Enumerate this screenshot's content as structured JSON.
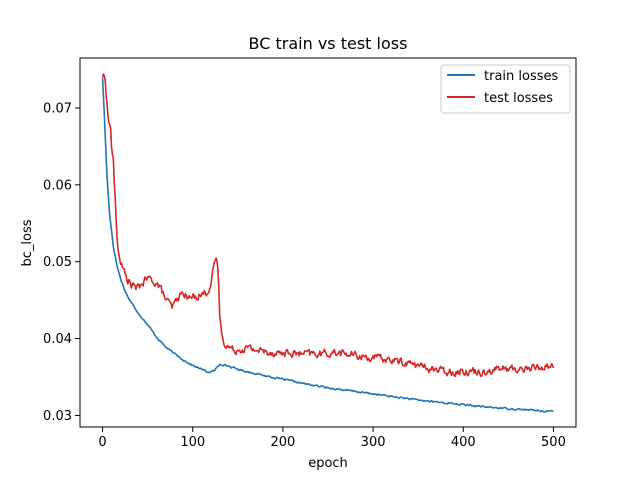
{
  "chart_data": {
    "type": "line",
    "title": "BC train vs test loss",
    "xlabel": "epoch",
    "ylabel": "bc_loss",
    "xlim": [
      -25,
      525
    ],
    "ylim": [
      0.0285,
      0.0765
    ],
    "xticks": [
      0,
      100,
      200,
      300,
      400,
      500
    ],
    "yticks": [
      0.03,
      0.04,
      0.05,
      0.06,
      0.07
    ],
    "xtick_labels": [
      "0",
      "100",
      "200",
      "300",
      "400",
      "500"
    ],
    "ytick_labels": [
      "0.03",
      "0.04",
      "0.05",
      "0.06",
      "0.07"
    ],
    "grid": false,
    "legend_position": "top-right",
    "series": [
      {
        "name": "train losses",
        "color": "#1f77b4",
        "anchors": [
          [
            0,
            0.074
          ],
          [
            2,
            0.069
          ],
          [
            5,
            0.061
          ],
          [
            8,
            0.056
          ],
          [
            12,
            0.052
          ],
          [
            16,
            0.0495
          ],
          [
            20,
            0.0478
          ],
          [
            25,
            0.0462
          ],
          [
            30,
            0.045
          ],
          [
            40,
            0.0433
          ],
          [
            50,
            0.0418
          ],
          [
            60,
            0.0402
          ],
          [
            70,
            0.0389
          ],
          [
            80,
            0.038
          ],
          [
            90,
            0.0372
          ],
          [
            100,
            0.0365
          ],
          [
            110,
            0.036
          ],
          [
            118,
            0.0356
          ],
          [
            124,
            0.0358
          ],
          [
            130,
            0.0367
          ],
          [
            135,
            0.0366
          ],
          [
            150,
            0.036
          ],
          [
            175,
            0.0353
          ],
          [
            200,
            0.0347
          ],
          [
            225,
            0.0341
          ],
          [
            250,
            0.0336
          ],
          [
            275,
            0.0332
          ],
          [
            300,
            0.0328
          ],
          [
            325,
            0.0324
          ],
          [
            350,
            0.032
          ],
          [
            375,
            0.0317
          ],
          [
            400,
            0.0314
          ],
          [
            425,
            0.0311
          ],
          [
            450,
            0.0309
          ],
          [
            475,
            0.0307
          ],
          [
            500,
            0.0305
          ]
        ],
        "noise": 0.00018
      },
      {
        "name": "test losses",
        "color": "#d62728",
        "anchors": [
          [
            0,
            0.0742
          ],
          [
            3,
            0.0738
          ],
          [
            5,
            0.0705
          ],
          [
            7,
            0.068
          ],
          [
            9,
            0.0675
          ],
          [
            10,
            0.065
          ],
          [
            12,
            0.063
          ],
          [
            14,
            0.058
          ],
          [
            16,
            0.053
          ],
          [
            18,
            0.051
          ],
          [
            22,
            0.0492
          ],
          [
            27,
            0.0478
          ],
          [
            32,
            0.047
          ],
          [
            38,
            0.0465
          ],
          [
            44,
            0.0472
          ],
          [
            50,
            0.0478
          ],
          [
            57,
            0.0475
          ],
          [
            63,
            0.0468
          ],
          [
            70,
            0.0452
          ],
          [
            77,
            0.044
          ],
          [
            84,
            0.0453
          ],
          [
            90,
            0.046
          ],
          [
            95,
            0.0452
          ],
          [
            103,
            0.0455
          ],
          [
            110,
            0.0458
          ],
          [
            115,
            0.046
          ],
          [
            120,
            0.047
          ],
          [
            123,
            0.0488
          ],
          [
            126,
            0.0505
          ],
          [
            128,
            0.049
          ],
          [
            130,
            0.043
          ],
          [
            133,
            0.04
          ],
          [
            137,
            0.0392
          ],
          [
            145,
            0.0385
          ],
          [
            160,
            0.0388
          ],
          [
            180,
            0.0383
          ],
          [
            200,
            0.0381
          ],
          [
            220,
            0.038
          ],
          [
            240,
            0.038
          ],
          [
            260,
            0.0382
          ],
          [
            280,
            0.0378
          ],
          [
            300,
            0.0375
          ],
          [
            320,
            0.0372
          ],
          [
            340,
            0.0368
          ],
          [
            360,
            0.0362
          ],
          [
            380,
            0.0357
          ],
          [
            400,
            0.0358
          ],
          [
            420,
            0.0357
          ],
          [
            440,
            0.0361
          ],
          [
            460,
            0.036
          ],
          [
            480,
            0.0362
          ],
          [
            500,
            0.0365
          ]
        ],
        "noise": 0.0008
      }
    ]
  }
}
